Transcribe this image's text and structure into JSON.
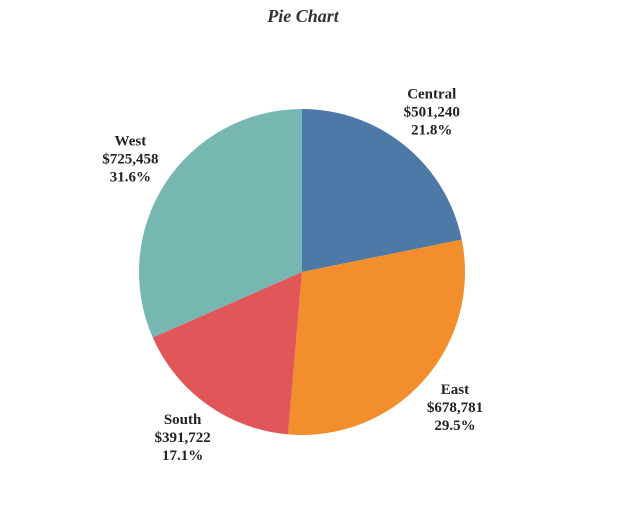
{
  "chart_data": {
    "type": "pie",
    "title": "Pie Chart",
    "categories": [
      "Central",
      "East",
      "South",
      "West"
    ],
    "values": [
      501240,
      678781,
      391722,
      725458
    ],
    "value_labels": [
      "$501,240",
      "$678,781",
      "$391,722",
      "$725,458"
    ],
    "percents": [
      21.8,
      29.5,
      17.1,
      31.6
    ],
    "percent_labels": [
      "21.8%",
      "29.5%",
      "17.1%",
      "31.6%"
    ],
    "colors": [
      "#4e79a7",
      "#f28e2b",
      "#e15759",
      "#76b7b2"
    ]
  }
}
